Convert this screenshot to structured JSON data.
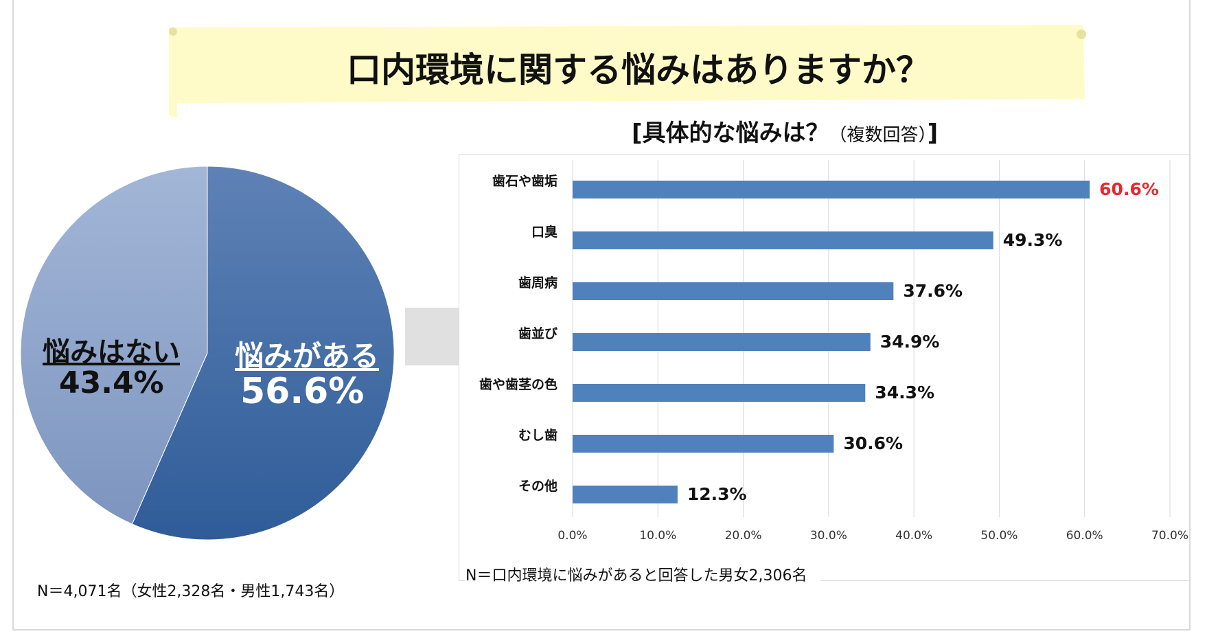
{
  "header": {
    "title": "口内環境に関する悩みはありますか？"
  },
  "colors": {
    "title_band": "#fffbc8",
    "pie_dark": "#3a67a3",
    "pie_light": "#8fa5c9",
    "bar": "#4f81bd",
    "highlight": "#e8282d",
    "arrow": "#e0e0e0"
  },
  "pie_chart": {
    "note": "N＝4,071名（女性2,328名・男性1,743名）"
  },
  "bar_chart": {
    "heading_main": "[具体的な悩みは？",
    "heading_sub": "（複数回答）",
    "heading_end": "]",
    "note": "N＝口内環境に悩みがあると回答した男女2,306名"
  },
  "chart_data": [
    {
      "type": "pie",
      "title": "口内環境に関する悩みはありますか？",
      "slices": [
        {
          "label": "悩みがある",
          "value": 56.6,
          "display": "56.6%",
          "color": "#3a67a3"
        },
        {
          "label": "悩みはない",
          "value": 43.4,
          "display": "43.4%",
          "color": "#8fa5c9"
        }
      ]
    },
    {
      "type": "bar",
      "orientation": "horizontal",
      "title": "[具体的な悩みは？（複数回答）]",
      "categories": [
        "歯石や歯垢",
        "口臭",
        "歯周病",
        "歯並び",
        "歯や歯茎の色",
        "むし歯",
        "その他"
      ],
      "values": [
        60.6,
        49.3,
        37.6,
        34.9,
        34.3,
        30.6,
        12.3
      ],
      "value_labels": [
        "60.6%",
        "49.3%",
        "37.6%",
        "34.9%",
        "34.3%",
        "30.6%",
        "12.3%"
      ],
      "highlight_index": 0,
      "xlim": [
        0,
        70
      ],
      "xticks": [
        "0.0%",
        "10.0%",
        "20.0%",
        "30.0%",
        "40.0%",
        "50.0%",
        "60.0%",
        "70.0%"
      ],
      "grid": true
    }
  ]
}
